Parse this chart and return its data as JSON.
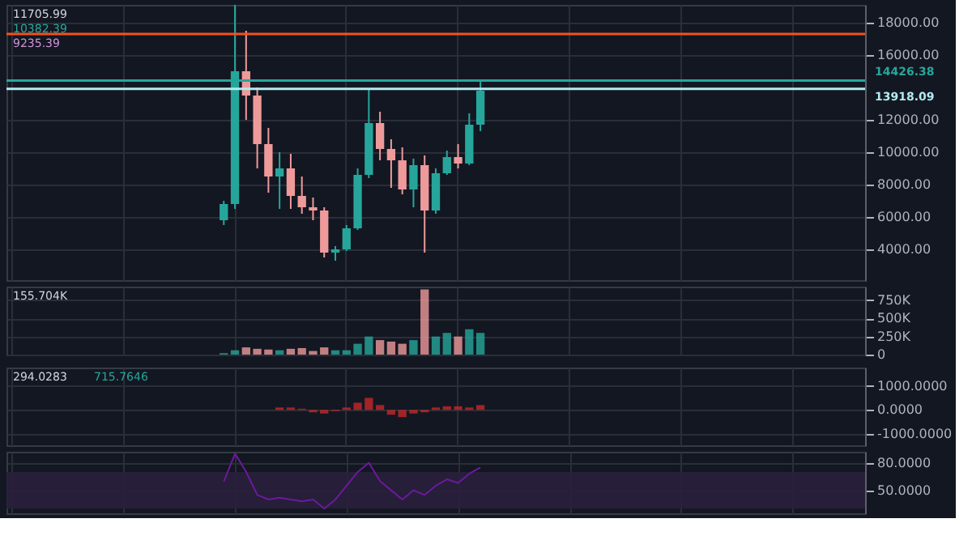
{
  "chart_data": [
    {
      "type": "candlestick",
      "categories": [
        null,
        null,
        null,
        null,
        null,
        null,
        null,
        null,
        null,
        null,
        null,
        null,
        null,
        null,
        null,
        null,
        null,
        null,
        null,
        null,
        null,
        null,
        null,
        null,
        null,
        null,
        null,
        null,
        null,
        null,
        null,
        null,
        null,
        null,
        null,
        null,
        null,
        null,
        null,
        null,
        null,
        null,
        null,
        null,
        null,
        null,
        null,
        null,
        null,
        null,
        null,
        null,
        null,
        null,
        null,
        null,
        null,
        null,
        null,
        null,
        null,
        null,
        null,
        null,
        null,
        null,
        null,
        null,
        null,
        null,
        null,
        null,
        null,
        null,
        null,
        null,
        null
      ],
      "ohlc": [
        null,
        null,
        null,
        null,
        null,
        null,
        null,
        null,
        null,
        null,
        null,
        null,
        null,
        null,
        null,
        null,
        null,
        null,
        null,
        [
          5800,
          7000,
          5500,
          6800
        ],
        [
          6800,
          19100,
          6500,
          15000
        ],
        [
          15000,
          17500,
          12000,
          13500
        ],
        [
          13500,
          14000,
          9000,
          10500
        ],
        [
          10500,
          11500,
          7500,
          8500
        ],
        [
          8500,
          10000,
          6500,
          9000
        ],
        [
          9000,
          9900,
          6500,
          7300
        ],
        [
          7300,
          8500,
          6200,
          6600
        ],
        [
          6600,
          7200,
          5800,
          6400
        ],
        [
          6400,
          6600,
          3500,
          3800
        ],
        [
          3800,
          4200,
          3300,
          4000
        ],
        [
          4000,
          5500,
          3900,
          5300
        ],
        [
          5300,
          9000,
          5200,
          8600
        ],
        [
          8600,
          13900,
          8400,
          11800
        ],
        [
          11800,
          12500,
          9500,
          10200
        ],
        [
          10200,
          10800,
          7800,
          9500
        ],
        [
          9500,
          10300,
          7400,
          7700
        ],
        [
          7700,
          9600,
          6600,
          9200
        ],
        [
          9200,
          9800,
          3800,
          6400
        ],
        [
          6400,
          9000,
          6200,
          8700
        ],
        [
          8700,
          10100,
          8600,
          9700
        ],
        [
          9700,
          10500,
          9000,
          9300
        ],
        [
          9300,
          12400,
          9200,
          11700
        ],
        [
          11700,
          14400,
          11300,
          13800
        ],
        null,
        null,
        null,
        null,
        null,
        null,
        null,
        null,
        null,
        null,
        null,
        null,
        null,
        null,
        null,
        null,
        null,
        null,
        null,
        null,
        null,
        null,
        null,
        null,
        null,
        null,
        null,
        null,
        null,
        null,
        null,
        null,
        null,
        null
      ],
      "colors": [
        null,
        null,
        null,
        null,
        null,
        null,
        null,
        null,
        null,
        null,
        null,
        null,
        null,
        null,
        null,
        null,
        null,
        null,
        null,
        "#26a69a",
        "#26a69a",
        "#ef9a9a",
        "#ef9a9a",
        "#ef9a9a",
        "#26a69a",
        "#ef9a9a",
        "#ef9a9a",
        "#ef9a9a",
        "#ef9a9a",
        "#26a69a",
        "#26a69a",
        "#26a69a",
        "#26a69a",
        "#ef9a9a",
        "#ef9a9a",
        "#ef9a9a",
        "#26a69a",
        "#ef9a9a",
        "#26a69a",
        "#26a69a",
        "#ef9a9a",
        "#26a69a",
        "#26a69a",
        null,
        null,
        null,
        null,
        null,
        null,
        null,
        null,
        null,
        null,
        null,
        null,
        null,
        null,
        null,
        null,
        null,
        null,
        null,
        null,
        null,
        null,
        null,
        null,
        null,
        null,
        null,
        null,
        null,
        null,
        null,
        null,
        null,
        null
      ],
      "ylim": [
        2100,
        19100
      ],
      "yticks": [
        {
          "value": 4000,
          "label": "4000.00"
        },
        {
          "value": 6000,
          "label": "6000.00"
        },
        {
          "value": 8000,
          "label": "8000.00"
        },
        {
          "value": 10000,
          "label": "10000.00"
        },
        {
          "value": 12000,
          "label": "12000.00"
        },
        {
          "value": 16000,
          "label": "16000.00"
        },
        {
          "value": 18000,
          "label": "18000.00"
        }
      ],
      "ref_lines": [
        {
          "axis": "y",
          "value": 14426.38,
          "label": "14426.38",
          "color": "#26a69a"
        },
        {
          "axis": "y",
          "value": 13918.09,
          "label": "13918.09",
          "color": "#b2ebf2"
        },
        {
          "axis": "y",
          "value": 17300,
          "color": "#f4511e"
        }
      ],
      "annotations": [
        "11705.99",
        "10382.39",
        "9235.39"
      ],
      "grid": true,
      "tick_labels": "y"
    },
    {
      "type": "bar",
      "categories": [
        null,
        null,
        null,
        null,
        null,
        null,
        null,
        null,
        null,
        null,
        null,
        null,
        null,
        null,
        null,
        null,
        null,
        null,
        null,
        null,
        null,
        null,
        null,
        null,
        null,
        null,
        null,
        null,
        null,
        null,
        null,
        null,
        null,
        null,
        null,
        null,
        null,
        null,
        null,
        null,
        null,
        null,
        null,
        null,
        null,
        null,
        null,
        null,
        null,
        null,
        null,
        null,
        null,
        null,
        null,
        null,
        null,
        null,
        null,
        null,
        null,
        null,
        null,
        null,
        null,
        null,
        null,
        null,
        null,
        null,
        null,
        null,
        null,
        null,
        null,
        null,
        null
      ],
      "values": [
        null,
        null,
        null,
        null,
        null,
        null,
        null,
        null,
        null,
        null,
        null,
        null,
        null,
        null,
        null,
        null,
        null,
        null,
        null,
        20000,
        60000,
        100000,
        80000,
        70000,
        60000,
        80000,
        90000,
        50000,
        100000,
        60000,
        60000,
        150000,
        250000,
        200000,
        180000,
        150000,
        200000,
        900000,
        250000,
        300000,
        250000,
        350000,
        300000,
        null,
        null,
        null,
        null,
        null,
        null,
        null,
        null,
        null,
        null,
        null,
        null,
        null,
        null,
        null,
        null,
        null,
        null,
        null,
        null,
        null,
        null,
        null,
        null,
        null,
        null,
        null,
        null,
        null,
        null,
        null,
        null,
        null,
        null
      ],
      "colors": [
        null,
        null,
        null,
        null,
        null,
        null,
        null,
        null,
        null,
        null,
        null,
        null,
        null,
        null,
        null,
        null,
        null,
        null,
        null,
        "#26a69a",
        "#26a69a",
        "#ef9a9a",
        "#ef9a9a",
        "#ef9a9a",
        "#26a69a",
        "#ef9a9a",
        "#ef9a9a",
        "#ef9a9a",
        "#ef9a9a",
        "#26a69a",
        "#26a69a",
        "#26a69a",
        "#26a69a",
        "#ef9a9a",
        "#ef9a9a",
        "#ef9a9a",
        "#26a69a",
        "#ef9a9a",
        "#26a69a",
        "#26a69a",
        "#ef9a9a",
        "#26a69a",
        "#26a69a",
        null,
        null,
        null,
        null,
        null,
        null,
        null,
        null,
        null,
        null,
        null,
        null,
        null,
        null,
        null,
        null,
        null,
        null,
        null,
        null,
        null,
        null,
        null,
        null,
        null,
        null,
        null,
        null,
        null,
        null,
        null,
        null,
        null,
        null
      ],
      "ylim": [
        0,
        940000
      ],
      "yticks": [
        0,
        {
          "value": 250000,
          "label": "250K"
        },
        {
          "value": 500000,
          "label": "500K"
        },
        {
          "value": 750000,
          "label": "750K"
        }
      ],
      "annotations": [
        "155.704K"
      ],
      "grid": true,
      "tick_labels": "y"
    },
    {
      "type": "bar",
      "categories": [
        null,
        null,
        null,
        null,
        null,
        null,
        null,
        null,
        null,
        null,
        null,
        null,
        null,
        null,
        null,
        null,
        null,
        null,
        null,
        null,
        null,
        null,
        null,
        null,
        null,
        null,
        null,
        null,
        null,
        null,
        null,
        null,
        null,
        null,
        null,
        null,
        null,
        null,
        null,
        null,
        null,
        null,
        null,
        null,
        null,
        null,
        null,
        null,
        null,
        null,
        null,
        null,
        null,
        null,
        null,
        null,
        null,
        null,
        null,
        null,
        null,
        null,
        null,
        null,
        null,
        null,
        null,
        null,
        null,
        null,
        null,
        null,
        null,
        null,
        null,
        null,
        null
      ],
      "values": [
        null,
        null,
        null,
        null,
        null,
        null,
        null,
        null,
        null,
        null,
        null,
        null,
        null,
        null,
        null,
        null,
        null,
        null,
        null,
        null,
        null,
        null,
        null,
        null,
        100,
        100,
        50,
        -100,
        -150,
        -50,
        100,
        300,
        500,
        200,
        -200,
        -300,
        -150,
        -100,
        100,
        150,
        150,
        100,
        200,
        null,
        null,
        null,
        null,
        null,
        null,
        null,
        null,
        null,
        null,
        null,
        null,
        null,
        null,
        null,
        null,
        null,
        null,
        null,
        null,
        null,
        null,
        null,
        null,
        null,
        null,
        null,
        null,
        null,
        null,
        null,
        null,
        null,
        null
      ],
      "color": "#c62828",
      "ylim": [
        -1470,
        1760
      ],
      "yticks": [
        {
          "value": -1000,
          "label": "-1000.0000"
        },
        {
          "value": 0,
          "label": "0.0000"
        },
        {
          "value": 1000,
          "label": "1000.0000"
        }
      ],
      "annotations": [
        "294.0283",
        "715.7646"
      ],
      "grid": true,
      "tick_labels": "y"
    },
    {
      "type": "line",
      "categories": [
        null,
        null,
        null,
        null,
        null,
        null,
        null,
        null,
        null,
        null,
        null,
        null,
        null,
        null,
        null,
        null,
        null,
        null,
        null,
        null,
        null,
        null,
        null,
        null,
        null,
        null,
        null,
        null,
        null,
        null,
        null,
        null,
        null,
        null,
        null,
        null,
        null,
        null,
        null,
        null,
        null,
        null,
        null,
        null,
        null,
        null,
        null,
        null,
        null,
        null,
        null,
        null,
        null,
        null,
        null,
        null,
        null,
        null,
        null,
        null,
        null,
        null,
        null,
        null,
        null,
        null,
        null,
        null,
        null,
        null,
        null,
        null,
        null,
        null,
        null,
        null,
        null
      ],
      "values": [
        null,
        null,
        null,
        null,
        null,
        null,
        null,
        null,
        null,
        null,
        null,
        null,
        null,
        null,
        null,
        null,
        null,
        null,
        null,
        60,
        90,
        70,
        45,
        40,
        42,
        40,
        38,
        40,
        30,
        40,
        55,
        70,
        80,
        60,
        50,
        40,
        50,
        45,
        55,
        62,
        58,
        68,
        75,
        null,
        null,
        null,
        null,
        null,
        null,
        null,
        null,
        null,
        null,
        null,
        null,
        null,
        null,
        null,
        null,
        null,
        null,
        null,
        null,
        null,
        null,
        null,
        null,
        null,
        null,
        null,
        null,
        null,
        null,
        null,
        null,
        null,
        null
      ],
      "color": "#6a1b9a",
      "ylim": [
        25,
        92
      ],
      "yticks": [
        {
          "value": 50,
          "label": "50.0000"
        },
        {
          "value": 80,
          "label": "80.0000"
        }
      ],
      "bands": [
        {
          "axis": "y",
          "from": 30,
          "to": 70,
          "color": "#2a1f3d"
        }
      ],
      "grid": true,
      "tick_labels": "y"
    }
  ]
}
